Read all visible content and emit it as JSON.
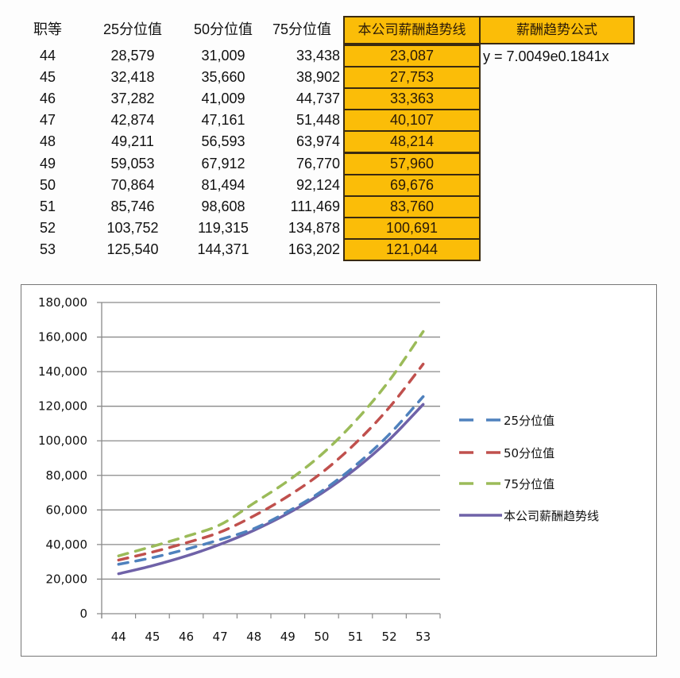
{
  "table": {
    "headers": {
      "grade": "职等",
      "p25": "25分位值",
      "p50": "50分位值",
      "p75": "75分位值",
      "company": "本公司薪酬趋势线",
      "formula": "薪酬趋势公式"
    },
    "formula_value": "y = 7.0049e0.1841x",
    "rows": [
      {
        "grade": "44",
        "p25": "28,579",
        "p50": "31,009",
        "p75": "33,438",
        "company": "23,087"
      },
      {
        "grade": "45",
        "p25": "32,418",
        "p50": "35,660",
        "p75": "38,902",
        "company": "27,753"
      },
      {
        "grade": "46",
        "p25": "37,282",
        "p50": "41,009",
        "p75": "44,737",
        "company": "33,363"
      },
      {
        "grade": "47",
        "p25": "42,874",
        "p50": "47,161",
        "p75": "51,448",
        "company": "40,107"
      },
      {
        "grade": "48",
        "p25": "49,211",
        "p50": "56,593",
        "p75": "63,974",
        "company": "48,214"
      },
      {
        "grade": "49",
        "p25": "59,053",
        "p50": "67,912",
        "p75": "76,770",
        "company": "57,960"
      },
      {
        "grade": "50",
        "p25": "70,864",
        "p50": "81,494",
        "p75": "92,124",
        "company": "69,676"
      },
      {
        "grade": "51",
        "p25": "85,746",
        "p50": "98,608",
        "p75": "111,469",
        "company": "83,760"
      },
      {
        "grade": "52",
        "p25": "103,752",
        "p50": "119,315",
        "p75": "134,878",
        "company": "100,691"
      },
      {
        "grade": "53",
        "p25": "125,540",
        "p50": "144,371",
        "p75": "163,202",
        "company": "121,044"
      }
    ],
    "colors": {
      "highlight": "#fbbd08",
      "border": "#3a2a10"
    }
  },
  "chart_data": {
    "type": "line",
    "title": "",
    "xlabel": "",
    "ylabel": "",
    "categories": [
      "44",
      "45",
      "46",
      "47",
      "48",
      "49",
      "50",
      "51",
      "52",
      "53"
    ],
    "ylim": [
      0,
      180000
    ],
    "yticks": [
      "0",
      "20,000",
      "40,000",
      "60,000",
      "80,000",
      "100,000",
      "120,000",
      "140,000",
      "160,000",
      "180,000"
    ],
    "grid": true,
    "legend_position": "right",
    "series": [
      {
        "name": "25分位值",
        "style": "dashed",
        "color": "#4f81bd",
        "values": [
          28579,
          32418,
          37282,
          42874,
          49211,
          59053,
          70864,
          85746,
          103752,
          125540
        ]
      },
      {
        "name": "50分位值",
        "style": "dashed",
        "color": "#c0504d",
        "values": [
          31009,
          35660,
          41009,
          47161,
          56593,
          67912,
          81494,
          98608,
          119315,
          144371
        ]
      },
      {
        "name": "75分位值",
        "style": "dashed",
        "color": "#9bbb59",
        "values": [
          33438,
          38902,
          44737,
          51448,
          63974,
          76770,
          92124,
          111469,
          134878,
          163202
        ]
      },
      {
        "name": "本公司薪酬趋势线",
        "style": "solid",
        "color": "#6f62a8",
        "values": [
          23087,
          27753,
          33363,
          40107,
          48214,
          57960,
          69676,
          83760,
          100691,
          121044
        ]
      }
    ]
  }
}
